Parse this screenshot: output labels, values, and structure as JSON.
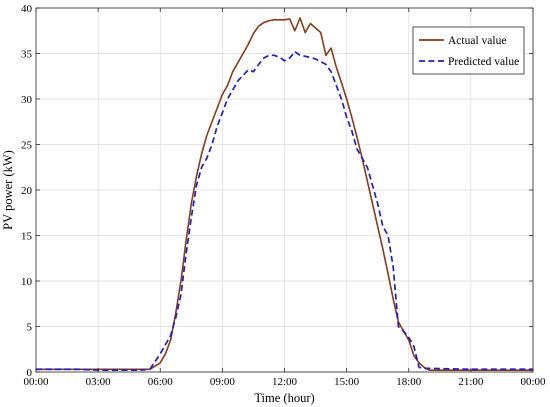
{
  "chart_data": {
    "type": "line",
    "xlabel": "Time (hour)",
    "ylabel": "PV power (kW)",
    "xlim": [
      0,
      24
    ],
    "ylim": [
      0,
      40
    ],
    "x_ticks": [
      0,
      3,
      6,
      9,
      12,
      15,
      18,
      21,
      24
    ],
    "x_tick_labels": [
      "00:00",
      "03:00",
      "06:00",
      "09:00",
      "12:00",
      "15:00",
      "18:00",
      "21:00",
      "00:00"
    ],
    "y_ticks": [
      0,
      5,
      10,
      15,
      20,
      25,
      30,
      35,
      40
    ],
    "y_tick_labels": [
      "0",
      "5",
      "10",
      "15",
      "20",
      "25",
      "30",
      "35",
      "40"
    ],
    "grid": true,
    "legend_position": "top-right",
    "series": [
      {
        "name": "Actual value",
        "color": "#8b3a1a",
        "style": "solid",
        "points": [
          [
            0,
            0.3
          ],
          [
            3,
            0.3
          ],
          [
            5,
            0.3
          ],
          [
            5.5,
            0.3
          ],
          [
            6.0,
            1.0
          ],
          [
            6.25,
            2.0
          ],
          [
            6.5,
            3.5
          ],
          [
            6.75,
            6.5
          ],
          [
            7.0,
            10.0
          ],
          [
            7.25,
            14.5
          ],
          [
            7.5,
            18.5
          ],
          [
            7.75,
            21.5
          ],
          [
            8.0,
            24.0
          ],
          [
            8.25,
            26.0
          ],
          [
            8.5,
            27.5
          ],
          [
            8.75,
            29.0
          ],
          [
            9.0,
            30.5
          ],
          [
            9.25,
            31.5
          ],
          [
            9.5,
            33.0
          ],
          [
            9.75,
            34.0
          ],
          [
            10.0,
            35.0
          ],
          [
            10.25,
            36.0
          ],
          [
            10.5,
            37.2
          ],
          [
            10.75,
            38.0
          ],
          [
            11.0,
            38.4
          ],
          [
            11.25,
            38.6
          ],
          [
            11.5,
            38.7
          ],
          [
            12.0,
            38.7
          ],
          [
            12.25,
            38.8
          ],
          [
            12.5,
            37.5
          ],
          [
            12.75,
            38.9
          ],
          [
            13.0,
            37.3
          ],
          [
            13.25,
            38.3
          ],
          [
            13.5,
            37.8
          ],
          [
            13.75,
            37.3
          ],
          [
            14.0,
            34.8
          ],
          [
            14.25,
            35.6
          ],
          [
            14.5,
            33.5
          ],
          [
            14.75,
            31.8
          ],
          [
            15.0,
            30.0
          ],
          [
            15.25,
            28.0
          ],
          [
            15.5,
            25.8
          ],
          [
            15.75,
            23.5
          ],
          [
            16.0,
            21.0
          ],
          [
            16.25,
            18.5
          ],
          [
            16.5,
            16.0
          ],
          [
            16.75,
            13.5
          ],
          [
            17.0,
            10.8
          ],
          [
            17.25,
            8.0
          ],
          [
            17.5,
            5.5
          ],
          [
            17.75,
            4.5
          ],
          [
            18.0,
            3.5
          ],
          [
            18.25,
            1.8
          ],
          [
            18.5,
            1.0
          ],
          [
            18.75,
            0.5
          ],
          [
            19.0,
            0.2
          ],
          [
            21,
            0.2
          ],
          [
            24,
            0.2
          ]
        ]
      },
      {
        "name": "Predicted value",
        "color": "#1f1fbf",
        "style": "dashed",
        "points": [
          [
            0,
            0.3
          ],
          [
            2,
            0.3
          ],
          [
            3,
            0.2
          ],
          [
            5,
            0.2
          ],
          [
            5.5,
            0.3
          ],
          [
            6.0,
            2.0
          ],
          [
            6.25,
            3.0
          ],
          [
            6.5,
            4.0
          ],
          [
            6.75,
            6.0
          ],
          [
            7.0,
            8.5
          ],
          [
            7.25,
            13.0
          ],
          [
            7.5,
            17.0
          ],
          [
            7.75,
            20.5
          ],
          [
            8.0,
            22.5
          ],
          [
            8.25,
            23.5
          ],
          [
            8.5,
            25.0
          ],
          [
            8.75,
            27.0
          ],
          [
            9.0,
            28.5
          ],
          [
            9.25,
            30.0
          ],
          [
            9.5,
            31.0
          ],
          [
            9.75,
            32.0
          ],
          [
            10.0,
            32.6
          ],
          [
            10.25,
            33.2
          ],
          [
            10.5,
            33.0
          ],
          [
            10.75,
            33.8
          ],
          [
            11.0,
            34.5
          ],
          [
            11.25,
            34.8
          ],
          [
            11.5,
            34.8
          ],
          [
            11.75,
            34.6
          ],
          [
            12.0,
            34.2
          ],
          [
            12.25,
            34.5
          ],
          [
            12.5,
            35.2
          ],
          [
            12.75,
            34.8
          ],
          [
            13.0,
            34.7
          ],
          [
            13.5,
            34.4
          ],
          [
            14.0,
            33.8
          ],
          [
            14.25,
            33.0
          ],
          [
            14.5,
            31.5
          ],
          [
            14.75,
            30.0
          ],
          [
            15.0,
            28.0
          ],
          [
            15.25,
            26.5
          ],
          [
            15.5,
            24.5
          ],
          [
            15.75,
            23.5
          ],
          [
            16.0,
            22.5
          ],
          [
            16.25,
            20.5
          ],
          [
            16.5,
            18.5
          ],
          [
            16.75,
            16.0
          ],
          [
            17.0,
            15.0
          ],
          [
            17.25,
            11.5
          ],
          [
            17.5,
            5.0
          ],
          [
            17.75,
            4.5
          ],
          [
            18.0,
            3.8
          ],
          [
            18.25,
            2.8
          ],
          [
            18.5,
            0.5
          ],
          [
            18.75,
            0.4
          ],
          [
            19.0,
            0.4
          ],
          [
            21,
            0.3
          ],
          [
            24,
            0.3
          ]
        ]
      }
    ]
  }
}
